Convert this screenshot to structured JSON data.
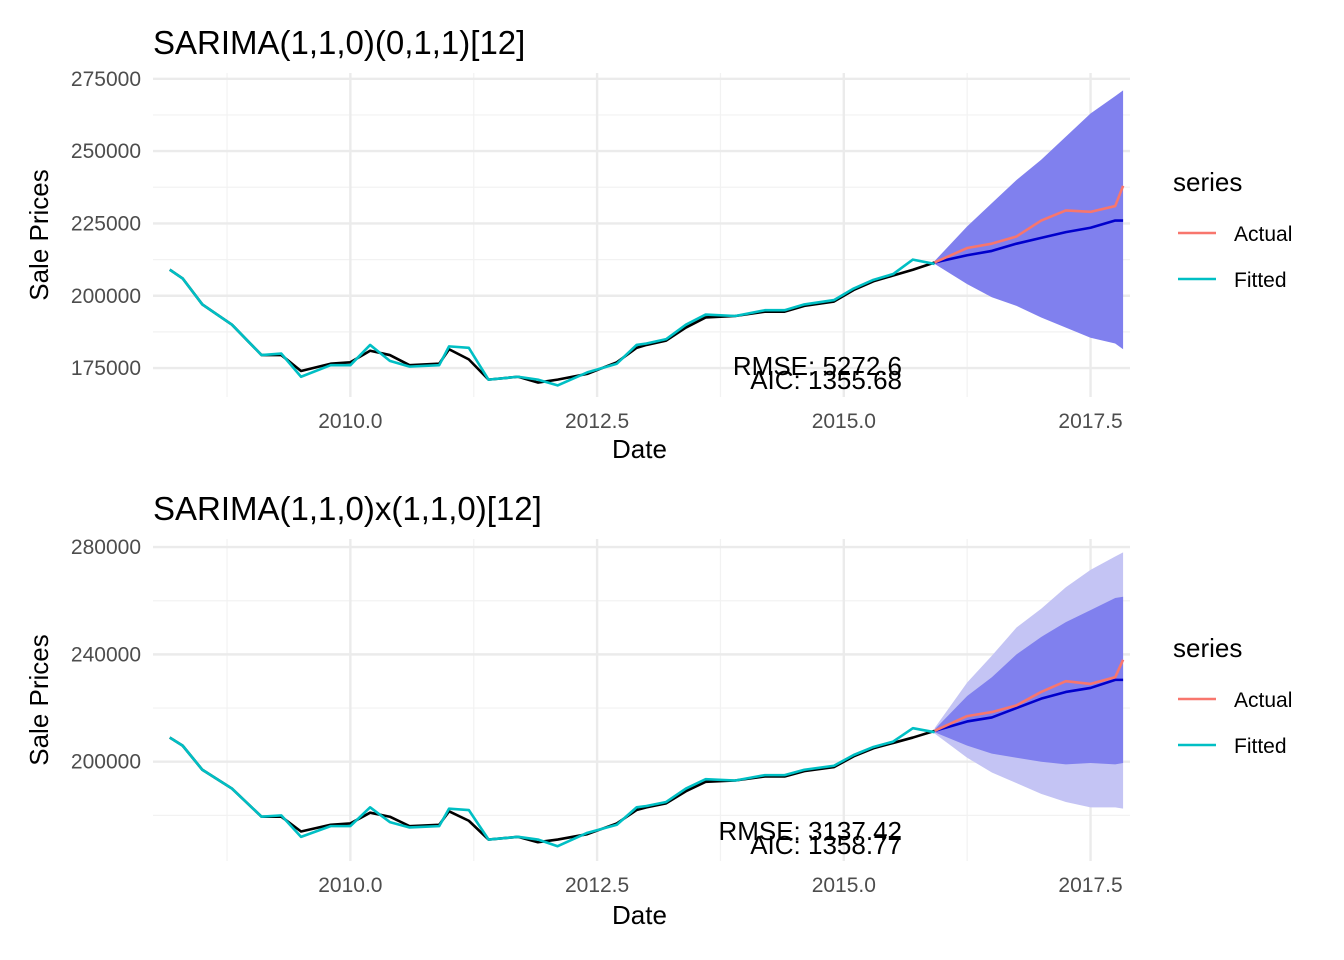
{
  "chart_data": [
    {
      "type": "line",
      "title": "SARIMA(1,1,0)(0,1,1)[12]",
      "xlabel": "Date",
      "ylabel": "Sale Prices",
      "xlim": [
        2008.0,
        2017.9
      ],
      "ylim": [
        165000,
        277000
      ],
      "x_ticks": [
        2010.0,
        2012.5,
        2015.0,
        2017.5
      ],
      "x_tick_labels": [
        "2010.0",
        "2012.5",
        "2015.0",
        "2017.5"
      ],
      "y_ticks": [
        175000,
        200000,
        225000,
        250000,
        275000
      ],
      "y_tick_labels": [
        "175000",
        "200000",
        "225000",
        "250000",
        "275000"
      ],
      "grid": true,
      "legend": {
        "title": "series",
        "position": "right",
        "entries": [
          "Actual",
          "Fitted"
        ]
      },
      "colors": {
        "observed": "#000000",
        "Actual": "#F8766D",
        "Fitted": "#00BFC4",
        "forecast": "#0000CC",
        "band_80": "#8080EE",
        "band_95": "#C4C4F4"
      },
      "annotations": {
        "rmse": "RMSE: 5272.6",
        "aic": "AIC: 1355.68"
      },
      "forecast": {
        "x": [
          2015.92,
          2016.25,
          2016.5,
          2016.75,
          2017.0,
          2017.25,
          2017.5,
          2017.75,
          2017.83
        ],
        "mean": [
          211500,
          214000,
          215500,
          218000,
          220000,
          222000,
          223500,
          226000,
          226000
        ],
        "lo80": [
          211000,
          204000,
          199500,
          196500,
          192500,
          189000,
          185500,
          183500,
          181500
        ],
        "hi80": [
          212000,
          224000,
          232000,
          240000,
          247000,
          255000,
          263000,
          269000,
          271000
        ],
        "actual": [
          211500,
          216500,
          218000,
          220500,
          226000,
          229500,
          229000,
          231000,
          238000
        ]
      },
      "series": [
        {
          "name": "Observed",
          "x": [
            2008.17,
            2008.3,
            2008.5,
            2008.8,
            2009.1,
            2009.3,
            2009.5,
            2009.8,
            2010.0,
            2010.2,
            2010.4,
            2010.6,
            2010.9,
            2011.0,
            2011.2,
            2011.4,
            2011.7,
            2011.9,
            2012.1,
            2012.4,
            2012.7,
            2012.9,
            2013.0,
            2013.2,
            2013.4,
            2013.6,
            2013.9,
            2014.2,
            2014.4,
            2014.6,
            2014.9,
            2015.1,
            2015.3,
            2015.5,
            2015.7,
            2015.92
          ],
          "values": [
            209000,
            206000,
            197000,
            190000,
            179500,
            179500,
            174000,
            176500,
            177000,
            181000,
            179500,
            176000,
            176500,
            181500,
            178000,
            171000,
            172000,
            170000,
            171000,
            173000,
            177000,
            182000,
            183000,
            184500,
            189000,
            192500,
            193000,
            194500,
            194500,
            196500,
            198000,
            202000,
            205000,
            207000,
            209000,
            211500
          ]
        },
        {
          "name": "Fitted",
          "x": [
            2008.17,
            2008.3,
            2008.5,
            2008.8,
            2009.1,
            2009.3,
            2009.5,
            2009.8,
            2010.0,
            2010.2,
            2010.4,
            2010.6,
            2010.9,
            2011.0,
            2011.2,
            2011.4,
            2011.7,
            2011.9,
            2012.1,
            2012.4,
            2012.7,
            2012.9,
            2013.0,
            2013.2,
            2013.4,
            2013.6,
            2013.9,
            2014.2,
            2014.4,
            2014.6,
            2014.9,
            2015.1,
            2015.3,
            2015.5,
            2015.7,
            2015.92
          ],
          "values": [
            209000,
            206000,
            197000,
            190000,
            179500,
            180000,
            172000,
            176000,
            176000,
            183000,
            177500,
            175500,
            176000,
            182500,
            182000,
            171000,
            172000,
            171000,
            169000,
            173500,
            176500,
            183000,
            183500,
            185000,
            190000,
            193500,
            193000,
            195000,
            195000,
            197000,
            198500,
            202500,
            205500,
            207500,
            212500,
            211000
          ]
        }
      ]
    },
    {
      "type": "line",
      "title": "SARIMA(1,1,0)x(1,1,0)[12]",
      "xlabel": "Date",
      "ylabel": "Sale Prices",
      "xlim": [
        2008.0,
        2017.9
      ],
      "ylim": [
        163000,
        283000
      ],
      "x_ticks": [
        2010.0,
        2012.5,
        2015.0,
        2017.5
      ],
      "x_tick_labels": [
        "2010.0",
        "2012.5",
        "2015.0",
        "2017.5"
      ],
      "y_ticks": [
        200000,
        240000,
        280000
      ],
      "y_tick_labels": [
        "200000",
        "240000",
        "280000"
      ],
      "grid": true,
      "legend": {
        "title": "series",
        "position": "right",
        "entries": [
          "Actual",
          "Fitted"
        ]
      },
      "colors": {
        "observed": "#000000",
        "Actual": "#F8766D",
        "Fitted": "#00BFC4",
        "forecast": "#0000CC",
        "band_80": "#8080EE",
        "band_95": "#C4C4F4"
      },
      "annotations": {
        "rmse": "RMSE: 3137.42",
        "aic": "AIC: 1358.77"
      },
      "forecast": {
        "x": [
          2015.92,
          2016.25,
          2016.5,
          2016.75,
          2017.0,
          2017.25,
          2017.5,
          2017.75,
          2017.83
        ],
        "mean": [
          211500,
          215000,
          216500,
          220000,
          223500,
          226000,
          227500,
          230500,
          230500
        ],
        "lo80": [
          211000,
          206000,
          203000,
          201500,
          200000,
          199000,
          199500,
          199000,
          199500
        ],
        "hi80": [
          212000,
          224500,
          231500,
          240000,
          246500,
          252000,
          256500,
          261000,
          261500
        ],
        "lo95": [
          210500,
          201500,
          196000,
          192000,
          188000,
          185000,
          183000,
          183000,
          182500
        ],
        "hi95": [
          212500,
          229500,
          239500,
          250000,
          257000,
          265000,
          271500,
          276500,
          278000
        ],
        "actual": [
          211500,
          217000,
          218500,
          221000,
          226000,
          230000,
          229000,
          231500,
          238000
        ]
      },
      "series": [
        {
          "name": "Observed",
          "x": [
            2008.17,
            2008.3,
            2008.5,
            2008.8,
            2009.1,
            2009.3,
            2009.5,
            2009.8,
            2010.0,
            2010.2,
            2010.4,
            2010.6,
            2010.9,
            2011.0,
            2011.2,
            2011.4,
            2011.7,
            2011.9,
            2012.1,
            2012.4,
            2012.7,
            2012.9,
            2013.0,
            2013.2,
            2013.4,
            2013.6,
            2013.9,
            2014.2,
            2014.4,
            2014.6,
            2014.9,
            2015.1,
            2015.3,
            2015.5,
            2015.7,
            2015.92
          ],
          "values": [
            209000,
            206000,
            197000,
            190000,
            179500,
            179500,
            174000,
            176500,
            177000,
            181000,
            179500,
            176000,
            176500,
            181500,
            178000,
            171000,
            172000,
            170000,
            171000,
            173000,
            177000,
            182000,
            183000,
            184500,
            189000,
            192500,
            193000,
            194500,
            194500,
            196500,
            198000,
            202000,
            205000,
            207000,
            209000,
            211500
          ]
        },
        {
          "name": "Fitted",
          "x": [
            2008.17,
            2008.3,
            2008.5,
            2008.8,
            2009.1,
            2009.3,
            2009.5,
            2009.8,
            2010.0,
            2010.2,
            2010.4,
            2010.6,
            2010.9,
            2011.0,
            2011.2,
            2011.4,
            2011.7,
            2011.9,
            2012.1,
            2012.4,
            2012.7,
            2012.9,
            2013.0,
            2013.2,
            2013.4,
            2013.6,
            2013.9,
            2014.2,
            2014.4,
            2014.6,
            2014.9,
            2015.1,
            2015.3,
            2015.5,
            2015.7,
            2015.92
          ],
          "values": [
            209000,
            206000,
            197000,
            190000,
            179500,
            180000,
            172000,
            176000,
            176000,
            183000,
            177500,
            175500,
            176000,
            182500,
            182000,
            171000,
            172000,
            171000,
            168500,
            173500,
            176500,
            183000,
            183500,
            185000,
            190000,
            193500,
            193000,
            195000,
            195000,
            197000,
            198500,
            202500,
            205500,
            207500,
            212500,
            211000
          ]
        }
      ]
    }
  ]
}
